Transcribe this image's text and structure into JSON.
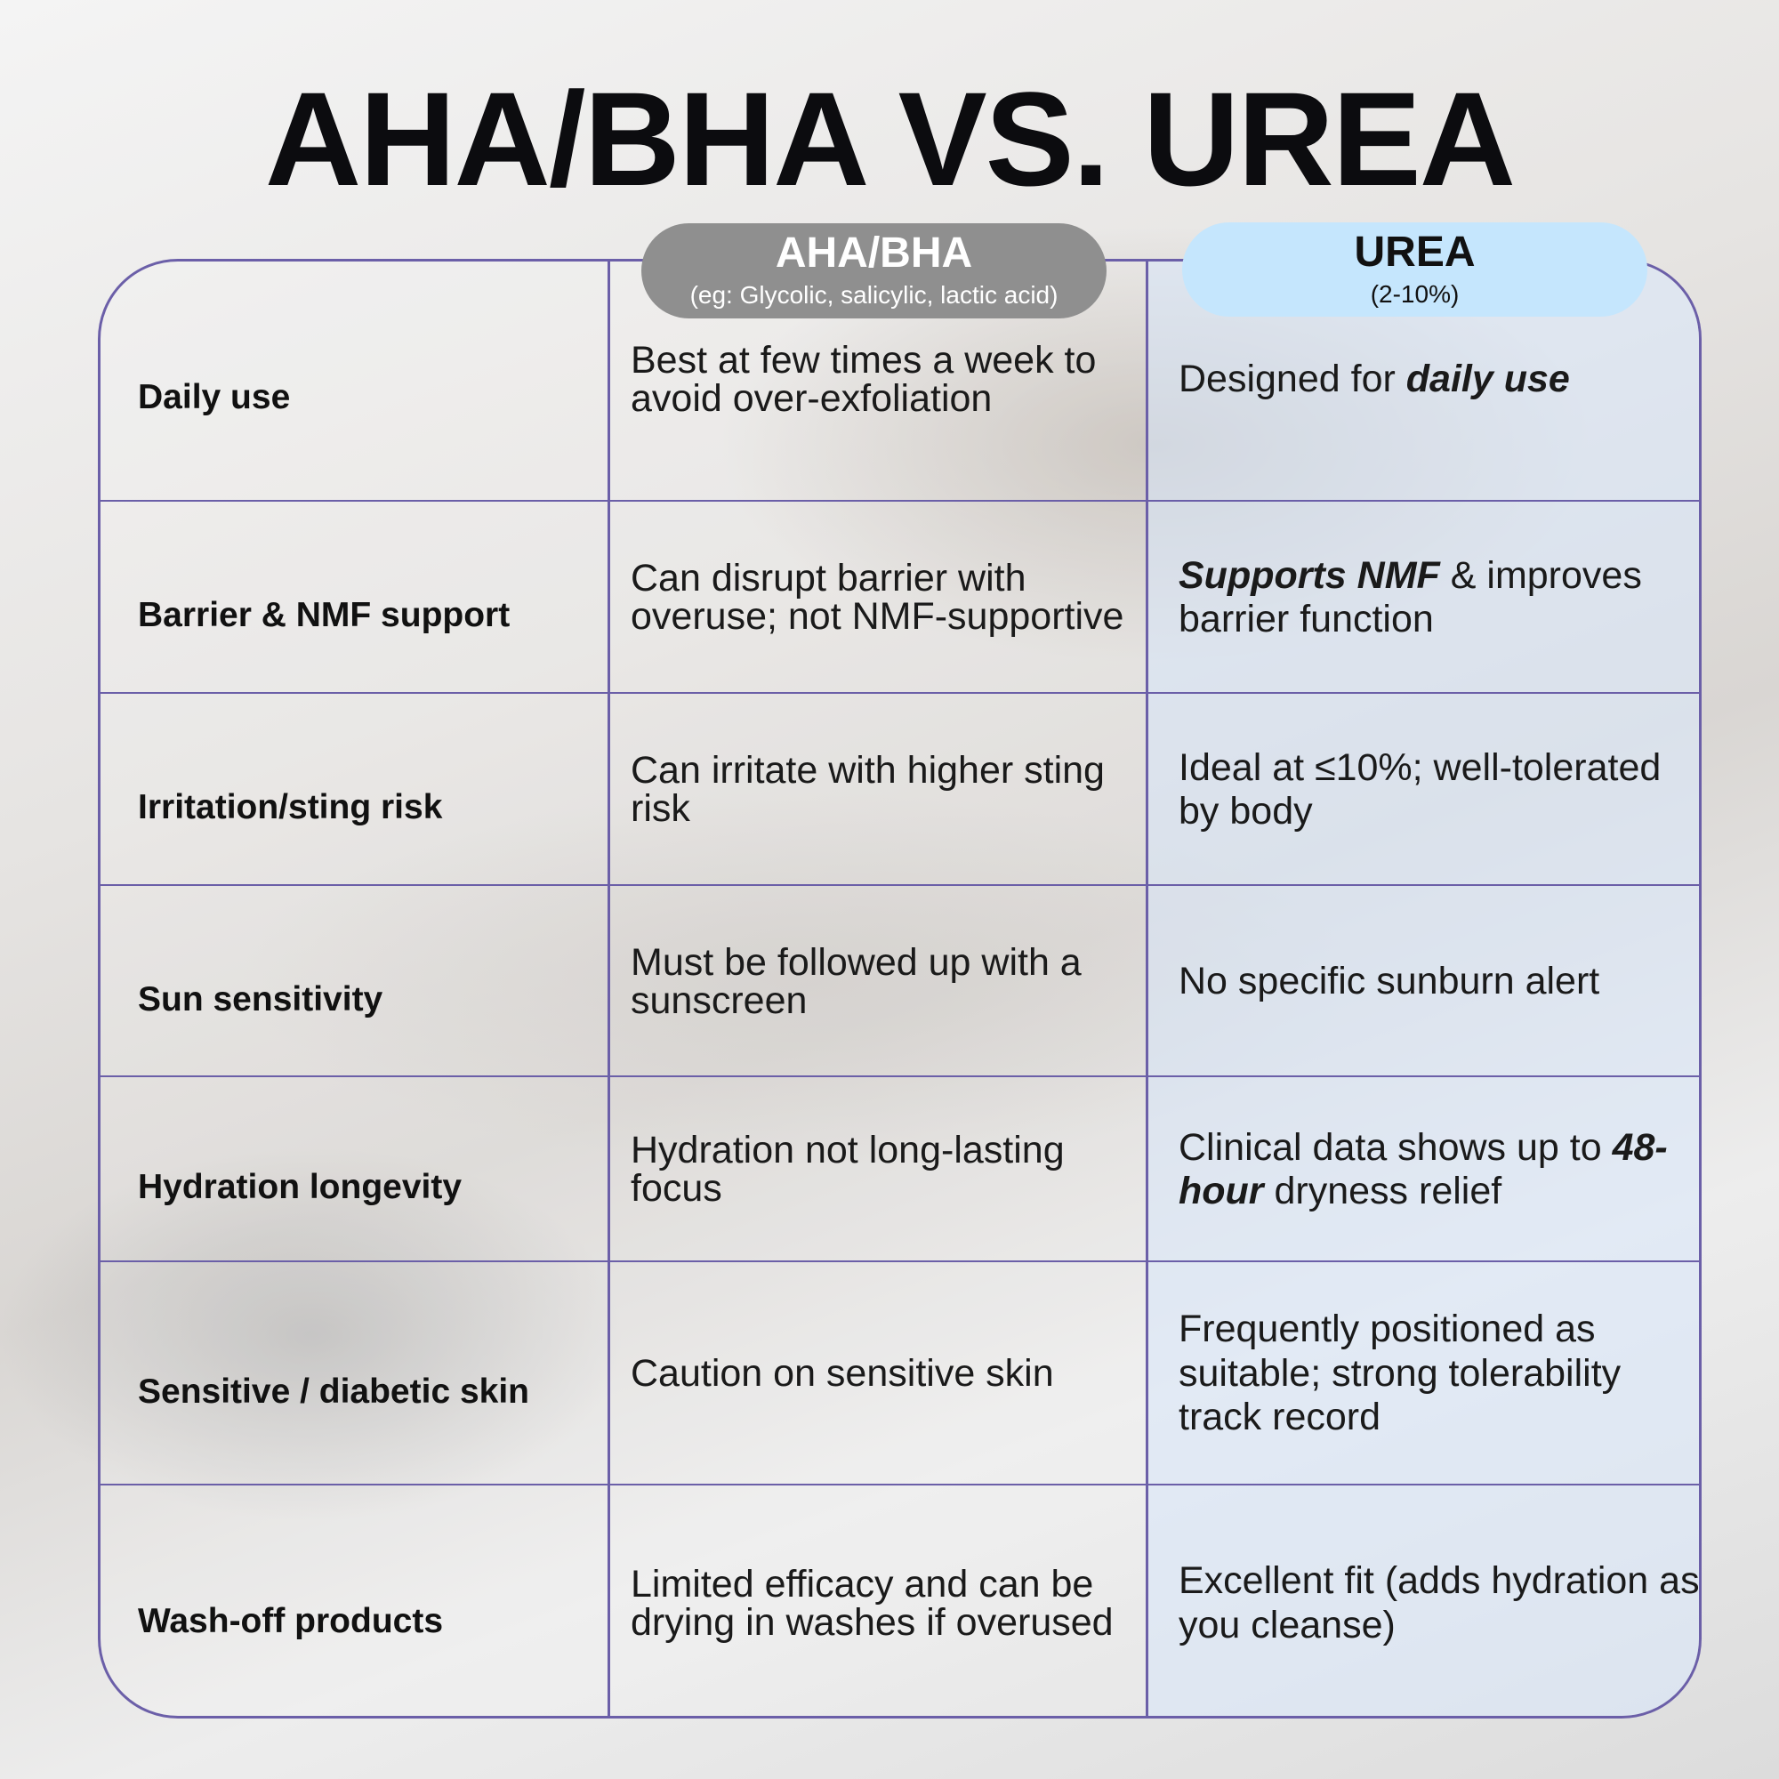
{
  "title": "AHA/BHA VS. UREA",
  "columns": [
    {
      "heading": "AHA/BHA",
      "subheading": "(eg: Glycolic, salicylic, lactic acid)"
    },
    {
      "heading": "UREA",
      "subheading": "(2-10%)"
    }
  ],
  "colors": {
    "border": "#6b5fa8",
    "aha_pill": "#8f8f8f",
    "urea_pill": "#c5e6fd"
  },
  "rows": [
    {
      "label": "Daily use",
      "aha": [
        {
          "t": "Best at few times a week to avoid over-exfoliation"
        }
      ],
      "urea": [
        {
          "t": "Designed for "
        },
        {
          "t": "daily use",
          "em": true
        }
      ]
    },
    {
      "label": "Barrier & NMF support",
      "aha": [
        {
          "t": "Can disrupt barrier with overuse; not NMF-supportive"
        }
      ],
      "urea": [
        {
          "t": "Supports NMF",
          "em": true
        },
        {
          "t": " & improves barrier function"
        }
      ]
    },
    {
      "label": "Irritation/sting risk",
      "aha": [
        {
          "t": "Can irritate with higher sting risk"
        }
      ],
      "urea": [
        {
          "t": "Ideal at ≤10%; well-tolerated by body"
        }
      ]
    },
    {
      "label": "Sun sensitivity",
      "aha": [
        {
          "t": "Must be followed up with a sunscreen"
        }
      ],
      "urea": [
        {
          "t": "No specific sunburn alert"
        }
      ]
    },
    {
      "label": "Hydration longevity",
      "aha": [
        {
          "t": "Hydration not long-lasting focus"
        }
      ],
      "urea": [
        {
          "t": "Clinical data shows up to "
        },
        {
          "t": "48-hour",
          "em": true
        },
        {
          "t": " dryness relief"
        }
      ]
    },
    {
      "label": "Sensitive / diabetic skin",
      "aha": [
        {
          "t": "Caution on sensitive skin"
        }
      ],
      "urea": [
        {
          "t": "Frequently positioned as suitable; strong tolerability track record"
        }
      ]
    },
    {
      "label": "Wash-off products",
      "aha": [
        {
          "t": "Limited efficacy and can be drying in washes if overused"
        }
      ],
      "urea": [
        {
          "t": "Excellent fit (adds hydration as you cleanse)"
        }
      ]
    }
  ]
}
